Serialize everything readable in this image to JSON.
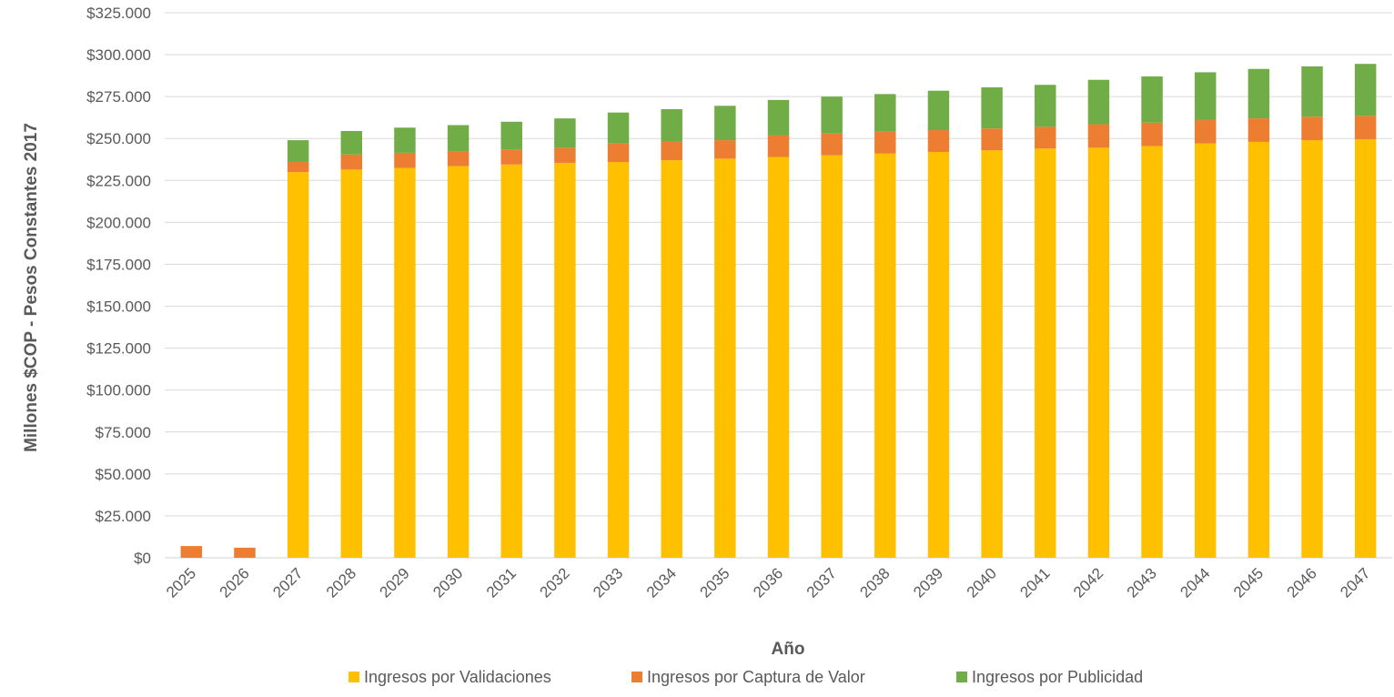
{
  "chart_data": {
    "type": "bar",
    "stacked": true,
    "title": "",
    "xlabel": "Año",
    "ylabel": "Millones $COP - Pesos Constantes 2017",
    "ylim": [
      0,
      325000
    ],
    "ytick_step": 25000,
    "ytick_labels": [
      "$0",
      "$25.000",
      "$50.000",
      "$75.000",
      "$100.000",
      "$125.000",
      "$150.000",
      "$175.000",
      "$200.000",
      "$225.000",
      "$250.000",
      "$275.000",
      "$300.000",
      "$325.000"
    ],
    "grid": true,
    "legend_position": "bottom",
    "categories": [
      "2025",
      "2026",
      "2027",
      "2028",
      "2029",
      "2030",
      "2031",
      "2032",
      "2033",
      "2034",
      "2035",
      "2036",
      "2037",
      "2038",
      "2039",
      "2040",
      "2041",
      "2042",
      "2043",
      "2044",
      "2045",
      "2046",
      "2047"
    ],
    "series": [
      {
        "name": "Ingresos por Validaciones",
        "color": "#FFC000",
        "values": [
          0,
          0,
          230000,
          231500,
          232500,
          233500,
          234500,
          235500,
          236000,
          237000,
          238000,
          239000,
          240000,
          241000,
          242000,
          243000,
          244000,
          244500,
          245500,
          247000,
          248000,
          249000,
          249500
        ]
      },
      {
        "name": "Ingresos por Captura de Valor",
        "color": "#ED7D31",
        "values": [
          7000,
          6000,
          6000,
          9000,
          9000,
          9000,
          9000,
          9000,
          11000,
          11000,
          11000,
          13000,
          13000,
          13000,
          13000,
          13000,
          13000,
          14000,
          14000,
          14000,
          14000,
          14000,
          14000
        ]
      },
      {
        "name": "Ingresos por Publicidad",
        "color": "#70AD47",
        "values": [
          0,
          0,
          13000,
          14000,
          15000,
          15500,
          16500,
          17500,
          18500,
          19500,
          20500,
          21000,
          22000,
          22500,
          23500,
          24500,
          25000,
          26500,
          27500,
          28500,
          29500,
          30000,
          31000
        ]
      }
    ]
  }
}
